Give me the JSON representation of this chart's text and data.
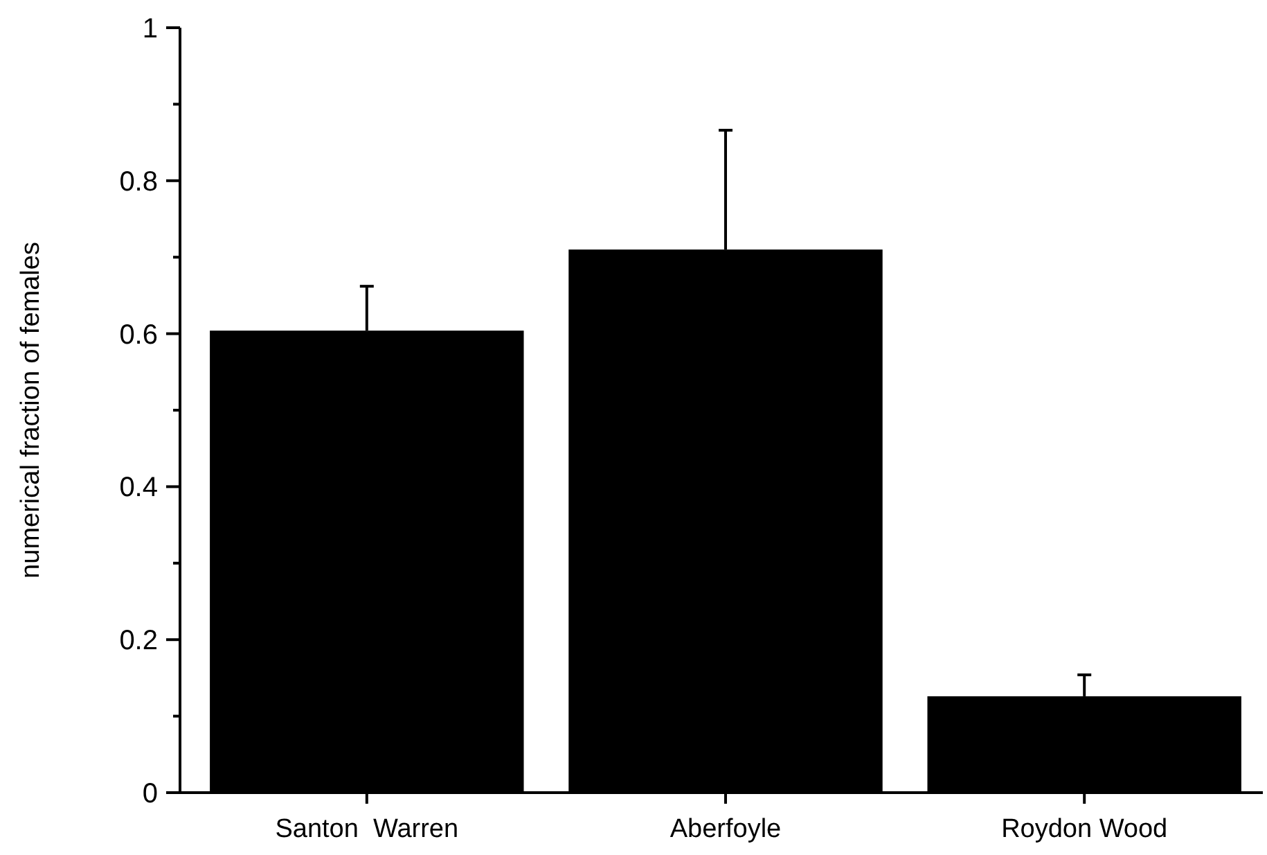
{
  "chart_data": {
    "type": "bar",
    "ylabel": "numerical fraction of females",
    "categories": [
      "Santon  Warren",
      "Aberfoyle",
      "Roydon Wood"
    ],
    "values": [
      0.604,
      0.71,
      0.126
    ],
    "color": "#000000",
    "errors": [
      [
        0.604,
        0.662
      ],
      [
        0.71,
        0.866
      ],
      [
        0.126,
        0.154
      ]
    ],
    "ylim": [
      0,
      1
    ],
    "yticks": [
      0,
      {
        "value": 0.1,
        "label": null
      },
      0.2,
      {
        "value": 0.3,
        "label": null
      },
      0.4,
      {
        "value": 0.5,
        "label": null
      },
      0.6,
      {
        "value": 0.7,
        "label": null
      },
      0.8,
      {
        "value": 0.9,
        "label": null
      },
      1
    ],
    "grid": false
  }
}
